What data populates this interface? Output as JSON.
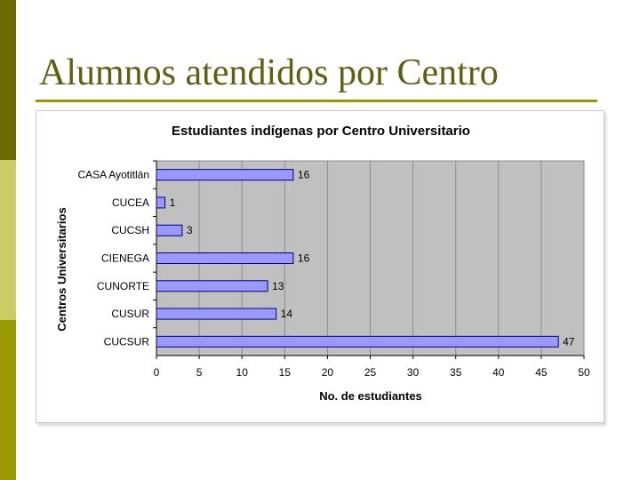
{
  "slide": {
    "title": "Alumnos atendidos por Centro"
  },
  "colors": {
    "sidebar_top": "#6b6b00",
    "sidebar_middle": "#cccc66",
    "sidebar_bottom": "#999900",
    "title_text": "#5f5f12",
    "title_rule": "#999900",
    "plot_background": "#c0c0c0",
    "bar_fill": "#9999ff",
    "bar_stroke": "#000080",
    "gridline": "#8c8c8c"
  },
  "chart_data": {
    "type": "bar",
    "orientation": "horizontal",
    "title": "Estudiantes indígenas por Centro Universitario",
    "xlabel": "No. de estudiantes",
    "ylabel": "Centros Universitarios",
    "categories": [
      "CASA Ayotitlán",
      "CUCEA",
      "CUCSH",
      "CIENEGA",
      "CUNORTE",
      "CUSUR",
      "CUCSUR"
    ],
    "values": [
      16,
      1,
      3,
      16,
      13,
      14,
      47
    ],
    "xlim": [
      0,
      50
    ],
    "xticks": [
      0,
      5,
      10,
      15,
      20,
      25,
      30,
      35,
      40,
      45,
      50
    ],
    "grid": true,
    "data_labels": true,
    "legend": "none"
  }
}
